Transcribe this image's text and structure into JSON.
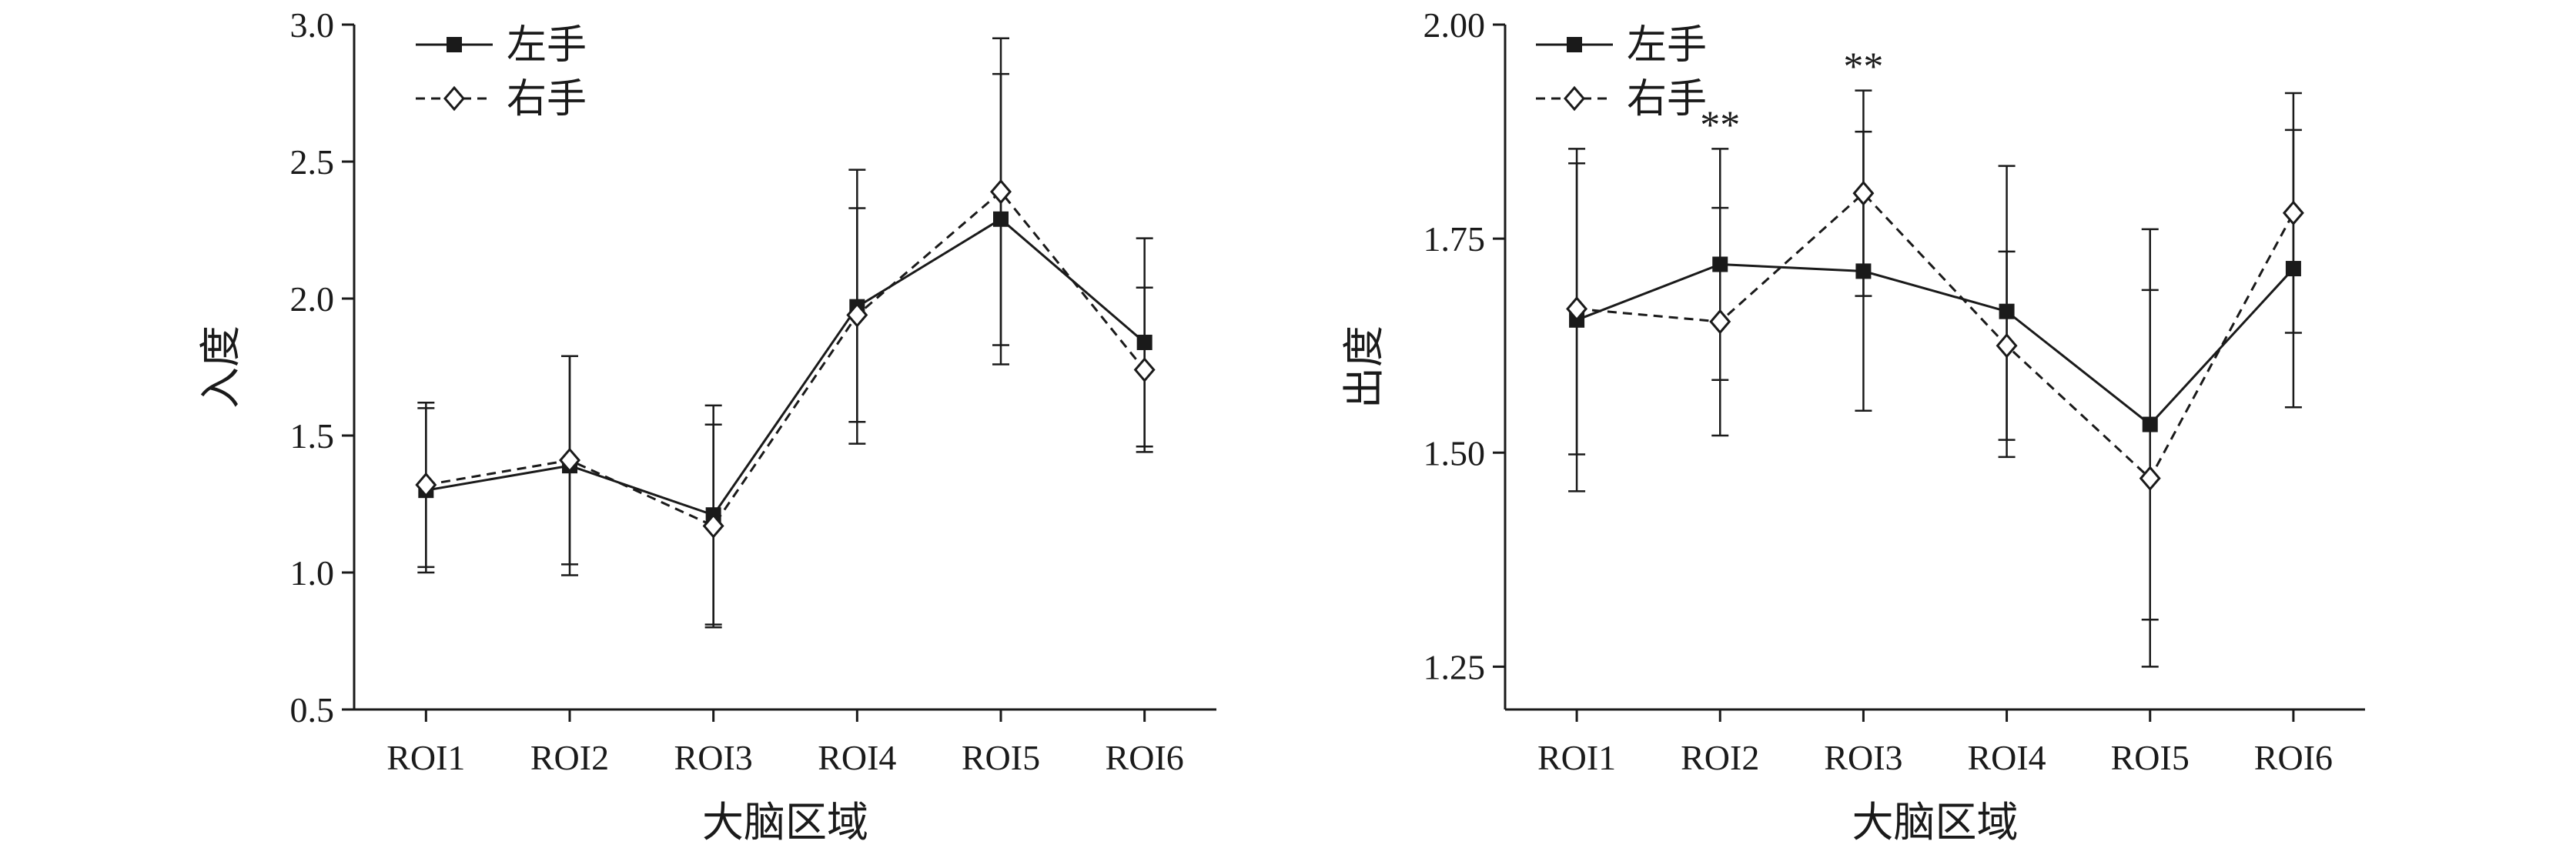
{
  "chart_data": [
    {
      "type": "line",
      "title": "",
      "xlabel": "大脑区域",
      "ylabel": "入度",
      "categories": [
        "ROI1",
        "ROI2",
        "ROI3",
        "ROI4",
        "ROI5",
        "ROI6"
      ],
      "ylim": [
        0.5,
        3.0
      ],
      "yticks": [
        "0.5",
        "1.0",
        "1.5",
        "2.0",
        "2.5",
        "3.0"
      ],
      "grid": false,
      "legend_position": "top-left",
      "series": [
        {
          "name": "左手",
          "marker": "filled-square",
          "line": "solid",
          "values": [
            1.3,
            1.39,
            1.21,
            1.97,
            2.29,
            1.84
          ],
          "error": [
            0.3,
            0.4,
            0.4,
            0.5,
            0.53,
            0.38
          ]
        },
        {
          "name": "右手",
          "marker": "open-diamond",
          "line": "dashed",
          "values": [
            1.32,
            1.41,
            1.17,
            1.94,
            2.39,
            1.74
          ],
          "error": [
            0.3,
            0.38,
            0.37,
            0.39,
            0.56,
            0.3
          ]
        }
      ],
      "annotations": []
    },
    {
      "type": "line",
      "title": "",
      "xlabel": "大脑区域",
      "ylabel": "出度",
      "categories": [
        "ROI1",
        "ROI2",
        "ROI3",
        "ROI4",
        "ROI5",
        "ROI6"
      ],
      "ylim": [
        1.2,
        2.0
      ],
      "yticks": [
        "1.25",
        "1.50",
        "1.75",
        "2.00"
      ],
      "grid": false,
      "legend_position": "top-left",
      "series": [
        {
          "name": "左手",
          "marker": "filled-square",
          "line": "solid",
          "values": [
            1.655,
            1.72,
            1.712,
            1.665,
            1.533,
            1.715
          ],
          "error": [
            0.2,
            0.135,
            0.163,
            0.17,
            0.228,
            0.162
          ]
        },
        {
          "name": "右手",
          "marker": "open-diamond",
          "line": "dashed",
          "values": [
            1.668,
            1.653,
            1.803,
            1.625,
            1.47,
            1.78
          ],
          "error": [
            0.17,
            0.133,
            0.12,
            0.11,
            0.22,
            0.14
          ]
        }
      ],
      "annotations": [
        {
          "category": "ROI2",
          "text": "**"
        },
        {
          "category": "ROI3",
          "text": "**"
        }
      ]
    }
  ]
}
